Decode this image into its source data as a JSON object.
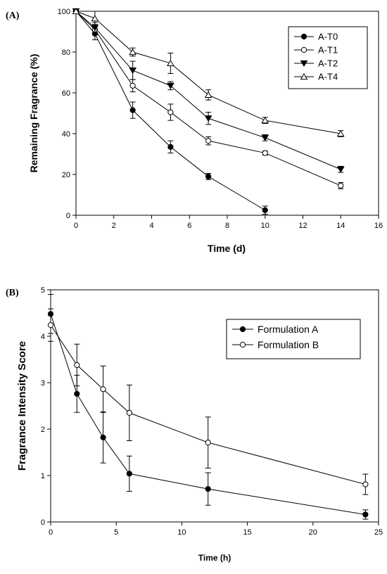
{
  "chart_data": [
    {
      "type": "line",
      "panel_label": "(A)",
      "xlabel": "Time (d)",
      "ylabel": "Remaining Fragrance (%)",
      "xlim": [
        0,
        16
      ],
      "ylim": [
        0,
        100
      ],
      "xticks": [
        0,
        2,
        4,
        6,
        8,
        10,
        12,
        14,
        16
      ],
      "yticks": [
        0,
        20,
        40,
        60,
        80,
        100
      ],
      "grid": false,
      "legend_position": "top-right",
      "series": [
        {
          "name": "A-T0",
          "marker": "circle-filled",
          "x": [
            0,
            1,
            3,
            5,
            7,
            10
          ],
          "y": [
            100,
            89,
            51.5,
            33.5,
            19,
            2.5
          ],
          "err": [
            0,
            3,
            4,
            3,
            1.5,
            2
          ]
        },
        {
          "name": "A-T1",
          "marker": "circle-open",
          "x": [
            0,
            1,
            3,
            5,
            7,
            10,
            14
          ],
          "y": [
            100,
            91,
            63.5,
            50.5,
            36.5,
            30.5,
            14.5
          ],
          "err": [
            0,
            2.5,
            3,
            4,
            2,
            1,
            1.5
          ]
        },
        {
          "name": "A-T2",
          "marker": "triangle-down-filled",
          "x": [
            0,
            1,
            3,
            5,
            7,
            10,
            14
          ],
          "y": [
            100,
            92,
            71,
            63.5,
            47.5,
            38,
            22.5
          ],
          "err": [
            0,
            2.5,
            4.5,
            2,
            3,
            1.5,
            1.5
          ]
        },
        {
          "name": "A-T4",
          "marker": "triangle-up-open",
          "x": [
            0,
            1,
            3,
            5,
            7,
            10,
            14
          ],
          "y": [
            100,
            96.5,
            80,
            74.5,
            59,
            46.5,
            40
          ],
          "err": [
            0,
            3.5,
            2,
            5,
            2.5,
            1.5,
            1.5
          ]
        }
      ]
    },
    {
      "type": "line",
      "panel_label": "(B)",
      "xlabel": "Time (h)",
      "ylabel": "Fragrance Intensity Score",
      "xlim": [
        0,
        25
      ],
      "ylim": [
        0,
        5
      ],
      "xticks": [
        0,
        5,
        10,
        15,
        20,
        25
      ],
      "yticks": [
        0,
        1,
        2,
        3,
        4,
        5
      ],
      "grid": false,
      "legend_position": "top-right",
      "series": [
        {
          "name": "Formulation A",
          "marker": "circle-filled",
          "x": [
            0,
            2,
            4,
            6,
            12,
            24
          ],
          "y": [
            4.48,
            2.76,
            1.82,
            1.04,
            0.71,
            0.16
          ],
          "err": [
            0.42,
            0.4,
            0.55,
            0.38,
            0.35,
            0.1
          ]
        },
        {
          "name": "Formulation B",
          "marker": "circle-open",
          "x": [
            0,
            2,
            4,
            6,
            12,
            24
          ],
          "y": [
            4.24,
            3.38,
            2.86,
            2.35,
            1.71,
            0.81
          ],
          "err": [
            0.35,
            0.45,
            0.5,
            0.6,
            0.55,
            0.22
          ]
        }
      ]
    }
  ]
}
